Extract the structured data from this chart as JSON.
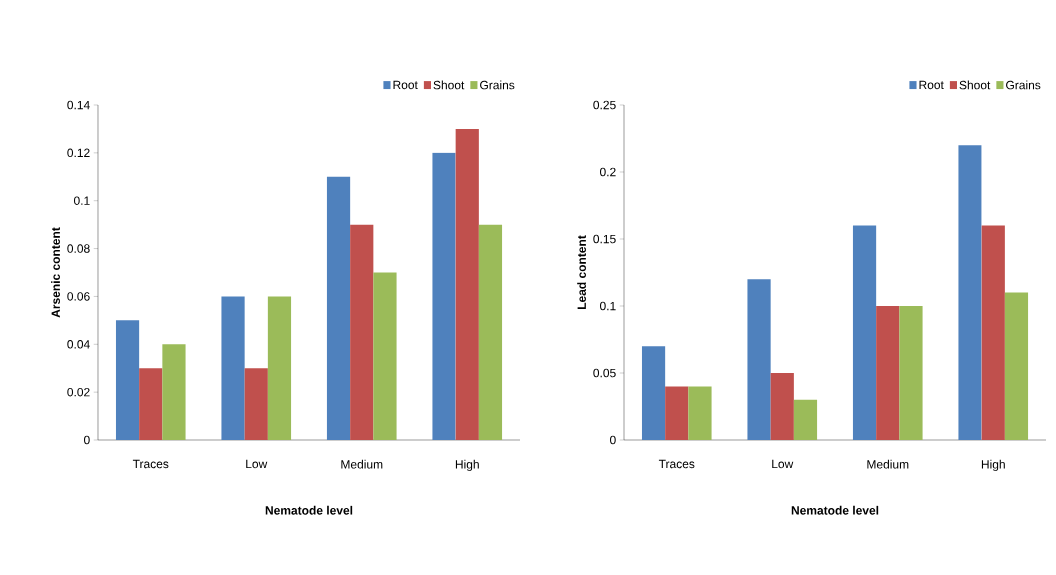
{
  "chart_data": [
    {
      "type": "bar",
      "xlabel": "Nematode level",
      "ylabel": "Arsenic  content",
      "categories": [
        "Traces",
        "Low",
        "Medium",
        "High"
      ],
      "series": [
        {
          "name": "Root",
          "color": "#4f81bd",
          "values": [
            0.05,
            0.06,
            0.11,
            0.12
          ]
        },
        {
          "name": "Shoot",
          "color": "#c0504d",
          "values": [
            0.03,
            0.03,
            0.09,
            0.13
          ]
        },
        {
          "name": "Grains",
          "color": "#9bbb59",
          "values": [
            0.04,
            0.06,
            0.07,
            0.09
          ]
        }
      ],
      "ylim": [
        0,
        0.14
      ],
      "yticks": [
        0,
        0.02,
        0.04,
        0.06,
        0.08,
        0.1,
        0.12,
        0.14
      ],
      "grid": false,
      "legend": "top right"
    },
    {
      "type": "bar",
      "xlabel": "Nematode level",
      "ylabel": "Lead content",
      "categories": [
        "Traces",
        "Low",
        "Medium",
        "High"
      ],
      "series": [
        {
          "name": "Root",
          "color": "#4f81bd",
          "values": [
            0.07,
            0.12,
            0.16,
            0.22
          ]
        },
        {
          "name": "Shoot",
          "color": "#c0504d",
          "values": [
            0.04,
            0.05,
            0.1,
            0.16
          ]
        },
        {
          "name": "Grains",
          "color": "#9bbb59",
          "values": [
            0.04,
            0.03,
            0.1,
            0.11
          ]
        }
      ],
      "ylim": [
        0,
        0.25
      ],
      "yticks": [
        0,
        0.05,
        0.1,
        0.15,
        0.2,
        0.25
      ],
      "grid": false,
      "legend": "top right"
    }
  ]
}
